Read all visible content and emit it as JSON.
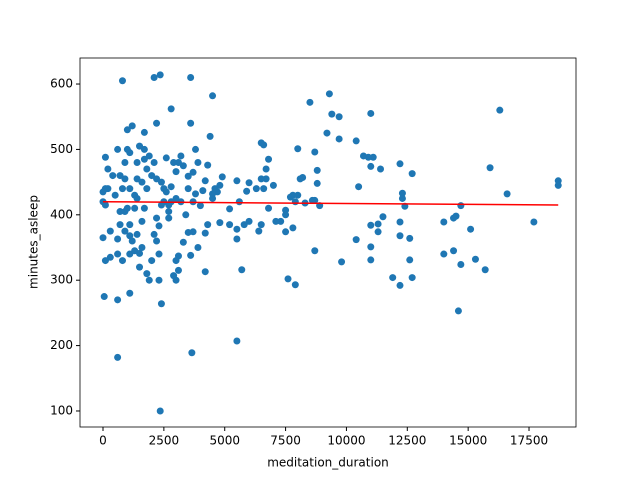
{
  "chart_data": {
    "type": "scatter",
    "xlabel": "meditation_duration",
    "ylabel": "minutes_asleep",
    "color": "#1f77b4",
    "x": [
      600,
      2350,
      3650,
      5500,
      800,
      2100,
      2350,
      3600,
      2800,
      4500,
      3600,
      16300,
      15900,
      16600,
      17700,
      18700,
      18700,
      14600,
      14700,
      14500,
      14400,
      14700,
      15300,
      15100,
      15700,
      14000,
      14000,
      14400,
      12700,
      12200,
      12300,
      12300,
      12400,
      12600,
      12200,
      12200,
      12600,
      12700,
      12200,
      11900,
      11000,
      11100,
      11400,
      11000,
      10900,
      10700,
      10400,
      10500,
      11500,
      11000,
      11300,
      11300,
      11000,
      11000,
      10400,
      9700,
      9400,
      9300,
      9200,
      8500,
      9700,
      9800,
      8700,
      8800,
      8800,
      8700,
      8900,
      8600,
      8200,
      8100,
      8000,
      7900,
      7800,
      7700,
      7500,
      7500,
      7900,
      7600,
      8700,
      8300,
      8000,
      7800,
      7500,
      7300,
      7100,
      7000,
      6800,
      6700,
      6700,
      6500,
      6600,
      6500,
      6300,
      6600,
      6800,
      6500,
      6400,
      6000,
      5900,
      6000,
      5800,
      5700,
      5500,
      5500,
      5500,
      5600,
      5200,
      5200,
      4900,
      4800,
      4700,
      4600,
      4800,
      4500,
      4300,
      4200,
      4100,
      4300,
      4200,
      4200,
      4000,
      3900,
      3800,
      3700,
      3500,
      3500,
      3800,
      3700,
      3400,
      3500,
      3700,
      3600,
      3300,
      3100,
      3000,
      3100,
      3000,
      2900,
      3200,
      3200,
      3100,
      3000,
      2900,
      2800,
      2800,
      2700,
      2700,
      2500,
      2500,
      2400,
      2400,
      2300,
      2200,
      2200,
      2200,
      2200,
      2100,
      2000,
      1900,
      1800,
      1700,
      1700,
      1700,
      1800,
      1800,
      1700,
      1600,
      1600,
      1500,
      1500,
      1400,
      1400,
      1300,
      1300,
      1200,
      1100,
      1100,
      1100,
      1100,
      1100,
      1100,
      1000,
      1000,
      900,
      900,
      900,
      800,
      700,
      700,
      700,
      600,
      600,
      600,
      500,
      400,
      300,
      300,
      200,
      200,
      100,
      100,
      100,
      100,
      0,
      50,
      0,
      0,
      2100,
      2600,
      1900,
      1500,
      1600,
      2300,
      2400,
      2300,
      4400,
      3900,
      4500,
      600,
      800,
      900,
      1200,
      1300,
      1400,
      1000,
      1400,
      2000,
      2600,
      3000,
      3300,
      2700
    ],
    "values": [
      182,
      100,
      189,
      207,
      605,
      610,
      614,
      610,
      562,
      582,
      540,
      560,
      472,
      432,
      389,
      452,
      445,
      253,
      414,
      398,
      345,
      324,
      332,
      378,
      316,
      389,
      340,
      395,
      463,
      478,
      433,
      425,
      413,
      364,
      368,
      389,
      331,
      304,
      292,
      304,
      555,
      488,
      470,
      474,
      488,
      490,
      513,
      443,
      397,
      384,
      386,
      374,
      351,
      331,
      362,
      550,
      554,
      585,
      525,
      572,
      516,
      328,
      496,
      468,
      448,
      422,
      414,
      422,
      457,
      455,
      501,
      420,
      430,
      427,
      407,
      400,
      293,
      302,
      345,
      418,
      430,
      380,
      374,
      390,
      390,
      445,
      485,
      470,
      455,
      510,
      507,
      455,
      440,
      440,
      410,
      385,
      375,
      449,
      436,
      390,
      385,
      316,
      452,
      378,
      363,
      420,
      409,
      385,
      458,
      445,
      435,
      440,
      388,
      425,
      476,
      452,
      437,
      385,
      372,
      313,
      414,
      480,
      500,
      465,
      459,
      440,
      432,
      420,
      400,
      373,
      374,
      338,
      358,
      337,
      330,
      315,
      300,
      307,
      420,
      490,
      480,
      466,
      480,
      443,
      420,
      415,
      395,
      440,
      420,
      450,
      415,
      383,
      540,
      455,
      395,
      360,
      370,
      330,
      300,
      310,
      526,
      500,
      485,
      470,
      440,
      410,
      390,
      350,
      341,
      320,
      480,
      455,
      430,
      410,
      536,
      495,
      440,
      385,
      368,
      340,
      280,
      530,
      500,
      480,
      455,
      405,
      330,
      460,
      405,
      385,
      363,
      270,
      340,
      430,
      460,
      375,
      335,
      470,
      440,
      488,
      440,
      415,
      330,
      365,
      275,
      420,
      435,
      480,
      487,
      490,
      505,
      450,
      300,
      264,
      340,
      520,
      350,
      432,
      500,
      440,
      375,
      360,
      345,
      370,
      410,
      425,
      460,
      435,
      425,
      475,
      405
    ],
    "trend": {
      "x": [
        0,
        18700
      ],
      "values": [
        420,
        415
      ],
      "color": "#ff0000"
    },
    "xlim": [
      -945,
      19430
    ],
    "ylim": [
      75.5,
      639.8
    ],
    "xticks": [
      0,
      2500,
      5000,
      7500,
      10000,
      12500,
      15000,
      17500
    ],
    "yticks": [
      100,
      200,
      300,
      400,
      500,
      600
    ]
  }
}
